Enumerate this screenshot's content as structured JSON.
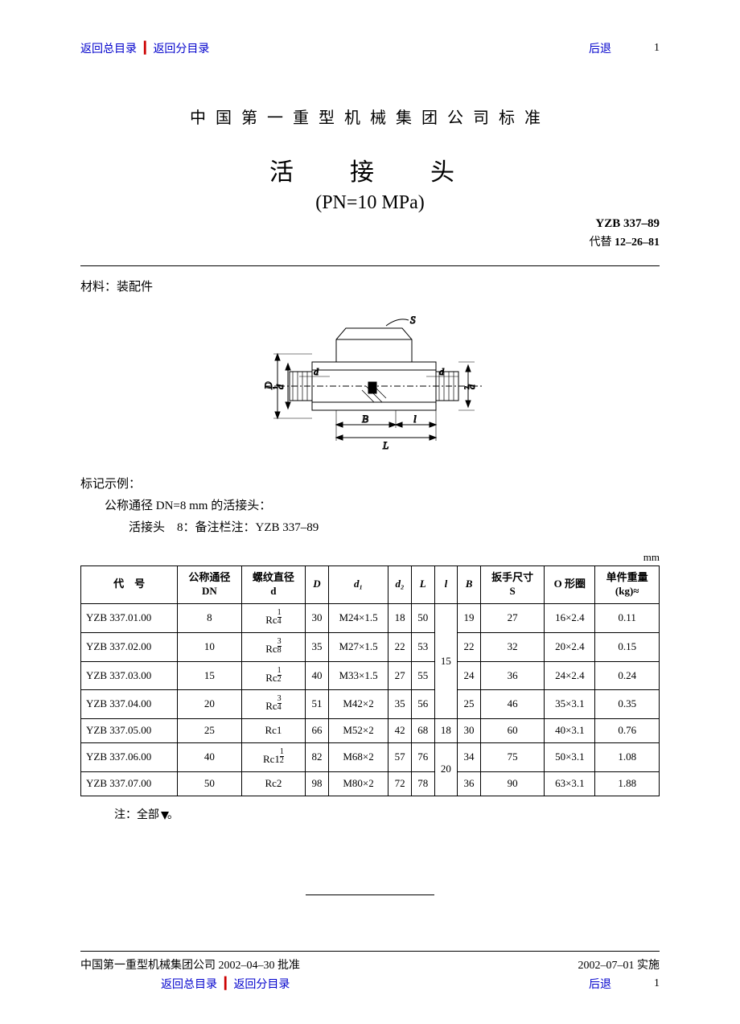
{
  "nav": {
    "main_toc": "返回总目录",
    "sub_toc": "返回分目录",
    "back": "后退",
    "page_num": "1"
  },
  "header": {
    "org": "中国第一重型机械集团公司标准",
    "title": "活　接　头",
    "subtitle": "(PN=10 MPa)",
    "std_code": "YZB  337–89",
    "replaces_label": "代替",
    "replaces_code": "12–26–81"
  },
  "material": {
    "label": "材料：",
    "value": "装配件"
  },
  "diagram": {
    "labels": {
      "S": "S",
      "D": "D",
      "d1": "d1",
      "d": "d",
      "d2": "d2",
      "B": "B",
      "l": "l",
      "L": "L"
    },
    "colors": {
      "stroke": "#000000",
      "fill_section": "#dddddd",
      "fill_hatch": "#000000"
    }
  },
  "marking": {
    "heading": "标记示例：",
    "line1": "公称通径 DN=8 mm 的活接头：",
    "line2": "活接头　8：备注栏注：YZB 337–89"
  },
  "unit": "mm",
  "table": {
    "columns": [
      {
        "h1": "代　号",
        "h2": ""
      },
      {
        "h1": "公称通径",
        "h2": "DN"
      },
      {
        "h1": "螺纹直径",
        "h2": "d"
      },
      {
        "h1": "D",
        "h2": "",
        "italic": true
      },
      {
        "h1": "d₁",
        "h2": "",
        "italic": true
      },
      {
        "h1": "d₂",
        "h2": "",
        "italic": true
      },
      {
        "h1": "L",
        "h2": "",
        "italic": true
      },
      {
        "h1": "l",
        "h2": "",
        "italic": true
      },
      {
        "h1": "B",
        "h2": "",
        "italic": true
      },
      {
        "h1": "扳手尺寸",
        "h2": "S"
      },
      {
        "h1": "O 形圈",
        "h2": ""
      },
      {
        "h1": "单件重量",
        "h2": "(kg)≈"
      }
    ],
    "rows": [
      {
        "code": "YZB 337.01.00",
        "dn": "8",
        "d_whole": "Rc",
        "d_num": "1",
        "d_den": "4",
        "D": "30",
        "d1": "M24×1.5",
        "d2": "18",
        "L": "50",
        "l": "",
        "B": "19",
        "S": "27",
        "oring": "16×2.4",
        "wt": "0.11"
      },
      {
        "code": "YZB 337.02.00",
        "dn": "10",
        "d_whole": "Rc",
        "d_num": "3",
        "d_den": "8",
        "D": "35",
        "d1": "M27×1.5",
        "d2": "22",
        "L": "53",
        "l": "",
        "B": "22",
        "S": "32",
        "oring": "20×2.4",
        "wt": "0.15"
      },
      {
        "code": "YZB 337.03.00",
        "dn": "15",
        "d_whole": "Rc",
        "d_num": "1",
        "d_den": "2",
        "D": "40",
        "d1": "M33×1.5",
        "d2": "27",
        "L": "55",
        "l": "",
        "B": "24",
        "S": "36",
        "oring": "24×2.4",
        "wt": "0.24"
      },
      {
        "code": "YZB 337.04.00",
        "dn": "20",
        "d_whole": "Rc",
        "d_num": "3",
        "d_den": "4",
        "D": "51",
        "d1": "M42×2",
        "d2": "35",
        "L": "56",
        "l": "",
        "B": "25",
        "S": "46",
        "oring": "35×3.1",
        "wt": "0.35"
      },
      {
        "code": "YZB 337.05.00",
        "dn": "25",
        "d_whole": "Rc1",
        "d_num": "",
        "d_den": "",
        "D": "66",
        "d1": "M52×2",
        "d2": "42",
        "L": "68",
        "l": "18",
        "B": "30",
        "S": "60",
        "oring": "40×3.1",
        "wt": "0.76"
      },
      {
        "code": "YZB 337.06.00",
        "dn": "40",
        "d_whole": "Rc1",
        "d_num": "1",
        "d_den": "2",
        "D": "82",
        "d1": "M68×2",
        "d2": "57",
        "L": "76",
        "l": "",
        "B": "34",
        "S": "75",
        "oring": "50×3.1",
        "wt": "1.08"
      },
      {
        "code": "YZB 337.07.00",
        "dn": "50",
        "d_whole": "Rc2",
        "d_num": "",
        "d_den": "",
        "D": "98",
        "d1": "M80×2",
        "d2": "72",
        "L": "78",
        "l": "",
        "B": "36",
        "S": "90",
        "oring": "63×3.1",
        "wt": "1.88"
      }
    ],
    "l_merge": [
      {
        "start": 0,
        "span": 4,
        "value": "15"
      },
      {
        "start": 4,
        "span": 1,
        "value": "18"
      },
      {
        "start": 5,
        "span": 2,
        "value": "20"
      }
    ]
  },
  "note": {
    "prefix": "注：全部",
    "suffix": "。"
  },
  "footer": {
    "approve": "中国第一重型机械集团公司 2002–04–30 批准",
    "implement": "2002–07–01 实施"
  }
}
